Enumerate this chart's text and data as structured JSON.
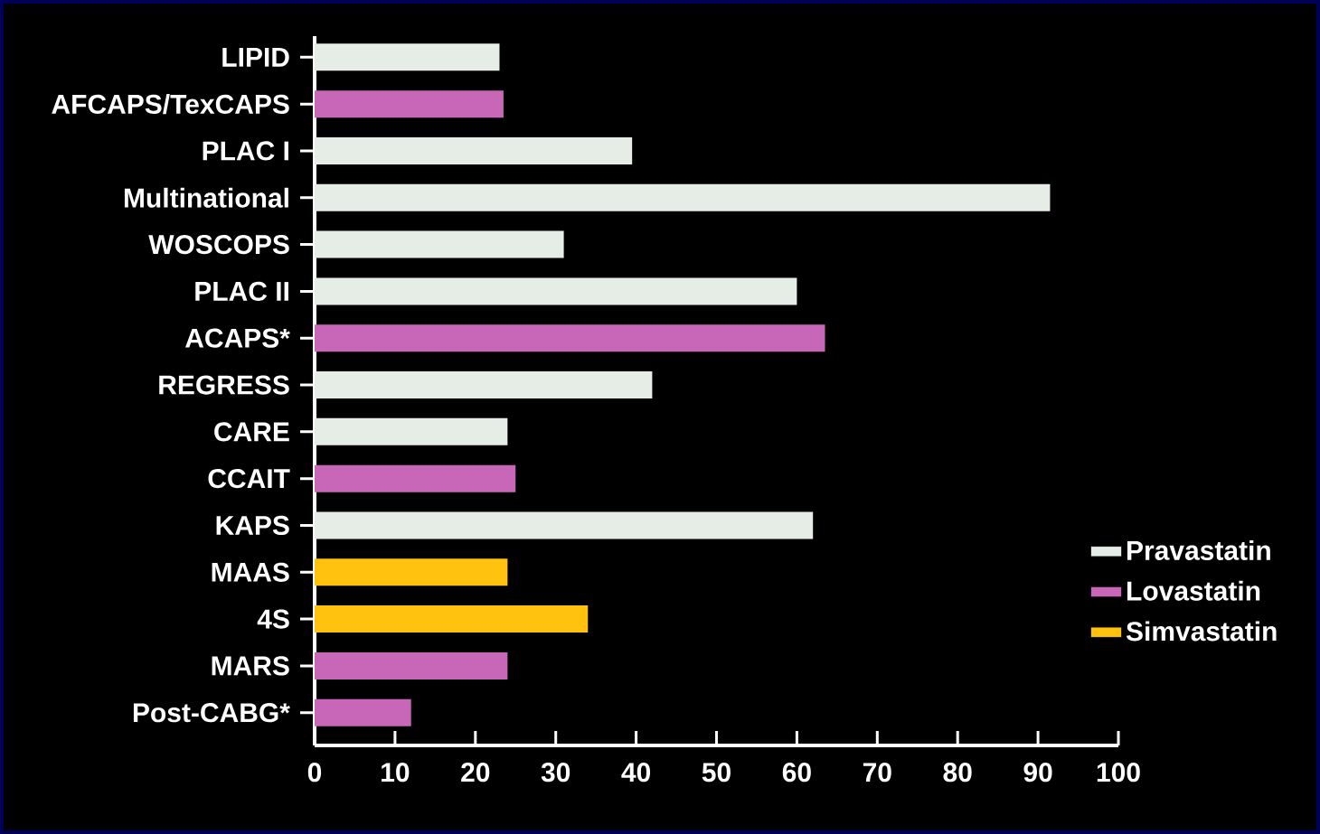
{
  "chart_data": {
    "type": "bar",
    "orientation": "horizontal",
    "categories": [
      "LIPID",
      "AFCAPS/TexCAPS",
      "PLAC I",
      "Multinational",
      "WOSCOPS",
      "PLAC II",
      "ACAPS*",
      "REGRESS",
      "CARE",
      "CCAIT",
      "KAPS",
      "MAAS",
      "4S",
      "MARS",
      "Post-CABG*"
    ],
    "series": [
      {
        "name": "Pravastatin",
        "color": "#e6ece6",
        "values": [
          23,
          null,
          39.5,
          91.5,
          31,
          60,
          null,
          42,
          24,
          null,
          62,
          null,
          null,
          null,
          null
        ]
      },
      {
        "name": "Lovastatin",
        "color": "#c866b8",
        "values": [
          null,
          23.5,
          null,
          null,
          null,
          null,
          63.5,
          null,
          null,
          25,
          null,
          null,
          null,
          24,
          12
        ]
      },
      {
        "name": "Simvastatin",
        "color": "#ffc20e",
        "values": [
          null,
          null,
          null,
          null,
          null,
          null,
          null,
          null,
          null,
          null,
          null,
          24,
          34,
          null,
          null
        ]
      }
    ],
    "xlim": [
      0,
      100
    ],
    "xticks": [
      0,
      10,
      20,
      30,
      40,
      50,
      60,
      70,
      80,
      90,
      100
    ],
    "legend": "right"
  }
}
